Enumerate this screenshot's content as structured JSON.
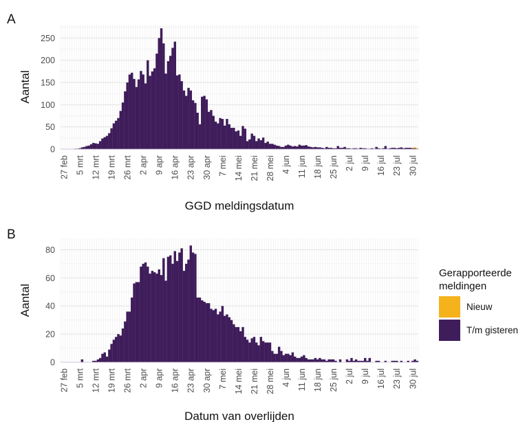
{
  "chart_data": [
    {
      "type": "bar",
      "panel_label": "A",
      "title": "",
      "xlabel": "GGD meldingsdatum",
      "ylabel": "Aantal",
      "ylim": [
        0,
        280
      ],
      "yticks": [
        0,
        50,
        100,
        150,
        200,
        250
      ],
      "xlim": [
        "2020-02-26",
        "2020-08-02"
      ],
      "xticks": [
        "27 feb",
        "5 mrt",
        "12 mrt",
        "19 mrt",
        "26 mrt",
        "2 apr",
        "9 apr",
        "16 apr",
        "23 apr",
        "30 apr",
        "7 mei",
        "14 mei",
        "21 mei",
        "28 mei",
        "4 jun",
        "11 jun",
        "18 jun",
        "25 jun",
        "2 jul",
        "9 jul",
        "16 jul",
        "23 jul",
        "30 jul"
      ],
      "grid": true,
      "stacked": true,
      "dates": [
        "27 feb",
        "28 feb",
        "29 feb",
        "1 mrt",
        "2 mrt",
        "3 mrt",
        "4 mrt",
        "5 mrt",
        "6 mrt",
        "7 mrt",
        "8 mrt",
        "9 mrt",
        "10 mrt",
        "11 mrt",
        "12 mrt",
        "13 mrt",
        "14 mrt",
        "15 mrt",
        "16 mrt",
        "17 mrt",
        "18 mrt",
        "19 mrt",
        "20 mrt",
        "21 mrt",
        "22 mrt",
        "23 mrt",
        "24 mrt",
        "25 mrt",
        "26 mrt",
        "27 mrt",
        "28 mrt",
        "29 mrt",
        "30 mrt",
        "31 mrt",
        "1 apr",
        "2 apr",
        "3 apr",
        "4 apr",
        "5 apr",
        "6 apr",
        "7 apr",
        "8 apr",
        "9 apr",
        "10 apr",
        "11 apr",
        "12 apr",
        "13 apr",
        "14 apr",
        "15 apr",
        "16 apr",
        "17 apr",
        "18 apr",
        "19 apr",
        "20 apr",
        "21 apr",
        "22 apr",
        "23 apr",
        "24 apr",
        "25 apr",
        "26 apr",
        "27 apr",
        "28 apr",
        "29 apr",
        "30 apr",
        "1 mei",
        "2 mei",
        "3 mei",
        "4 mei",
        "5 mei",
        "6 mei",
        "7 mei",
        "8 mei",
        "9 mei",
        "10 mei",
        "11 mei",
        "12 mei",
        "13 mei",
        "14 mei",
        "15 mei",
        "16 mei",
        "17 mei",
        "18 mei",
        "19 mei",
        "20 mei",
        "21 mei",
        "22 mei",
        "23 mei",
        "24 mei",
        "25 mei",
        "26 mei",
        "27 mei",
        "28 mei",
        "29 mei",
        "30 mei",
        "31 mei",
        "1 jun",
        "2 jun",
        "3 jun",
        "4 jun",
        "5 jun",
        "6 jun",
        "7 jun",
        "8 jun",
        "9 jun",
        "10 jun",
        "11 jun",
        "12 jun",
        "13 jun",
        "14 jun",
        "15 jun",
        "16 jun",
        "17 jun",
        "18 jun",
        "19 jun",
        "20 jun",
        "21 jun",
        "22 jun",
        "23 jun",
        "24 jun",
        "25 jun",
        "26 jun",
        "27 jun",
        "28 jun",
        "29 jun",
        "30 jun",
        "1 jul",
        "2 jul",
        "3 jul",
        "4 jul",
        "5 jul",
        "6 jul",
        "7 jul",
        "8 jul",
        "9 jul",
        "10 jul",
        "11 jul",
        "12 jul",
        "13 jul",
        "14 jul",
        "15 jul",
        "16 jul",
        "17 jul",
        "18 jul",
        "19 jul",
        "20 jul",
        "21 jul",
        "22 jul",
        "23 jul",
        "24 jul",
        "25 jul",
        "26 jul",
        "27 jul",
        "28 jul",
        "29 jul",
        "30 jul",
        "31 jul",
        "1 aug"
      ],
      "series": [
        {
          "name": "T/m gisteren",
          "color": "#3f1d5b",
          "values": [
            0,
            0,
            0,
            0,
            0,
            1,
            1,
            2,
            4,
            5,
            7,
            8,
            11,
            14,
            13,
            12,
            18,
            24,
            27,
            30,
            36,
            47,
            58,
            64,
            70,
            86,
            105,
            130,
            150,
            168,
            172,
            158,
            140,
            157,
            176,
            168,
            148,
            200,
            165,
            175,
            182,
            215,
            250,
            272,
            238,
            170,
            198,
            210,
            228,
            242,
            166,
            168,
            153,
            132,
            120,
            138,
            132,
            110,
            104,
            82,
            56,
            118,
            120,
            112,
            84,
            88,
            75,
            62,
            58,
            70,
            68,
            53,
            68,
            56,
            48,
            48,
            40,
            42,
            30,
            52,
            46,
            18,
            22,
            35,
            30,
            18,
            24,
            20,
            26,
            14,
            17,
            12,
            12,
            10,
            8,
            7,
            5,
            5,
            8,
            10,
            8,
            6,
            7,
            6,
            10,
            8,
            8,
            9,
            6,
            5,
            4,
            5,
            4,
            4,
            3,
            2,
            5,
            3,
            3,
            2,
            2,
            7,
            3,
            3,
            5,
            2,
            2,
            1,
            2,
            2,
            1,
            3,
            2,
            2,
            1,
            1,
            2,
            1,
            5,
            2,
            1,
            2,
            7,
            1,
            2,
            3,
            3,
            2,
            3,
            4,
            2,
            3,
            3,
            3,
            2,
            2,
            1
          ]
        },
        {
          "name": "Nieuw",
          "color": "#f5b21b",
          "values": [
            0,
            0,
            0,
            0,
            0,
            0,
            0,
            0,
            0,
            0,
            0,
            0,
            0,
            0,
            0,
            0,
            0,
            0,
            0,
            0,
            0,
            0,
            0,
            0,
            0,
            0,
            0,
            0,
            0,
            0,
            0,
            0,
            0,
            0,
            0,
            0,
            0,
            0,
            0,
            0,
            0,
            0,
            0,
            0,
            0,
            0,
            0,
            0,
            0,
            0,
            0,
            0,
            0,
            0,
            0,
            0,
            0,
            0,
            0,
            0,
            0,
            0,
            0,
            0,
            0,
            0,
            0,
            0,
            0,
            0,
            0,
            0,
            0,
            0,
            0,
            0,
            0,
            0,
            0,
            0,
            0,
            0,
            0,
            0,
            0,
            0,
            0,
            0,
            0,
            0,
            0,
            0,
            0,
            0,
            0,
            0,
            0,
            0,
            0,
            0,
            0,
            0,
            0,
            0,
            0,
            0,
            0,
            0,
            0,
            0,
            0,
            0,
            0,
            0,
            0,
            0,
            0,
            0,
            0,
            0,
            0,
            0,
            0,
            0,
            0,
            0,
            0,
            0,
            0,
            0,
            0,
            0,
            0,
            0,
            0,
            0,
            0,
            0,
            0,
            0,
            0,
            0,
            0,
            0,
            0,
            0,
            0,
            0,
            0,
            0,
            0,
            0,
            0,
            0,
            1,
            2,
            1
          ]
        }
      ]
    },
    {
      "type": "bar",
      "panel_label": "B",
      "title": "",
      "xlabel": "Datum van overlijden",
      "ylabel": "Aantal",
      "ylim": [
        0,
        88
      ],
      "yticks": [
        0,
        20,
        40,
        60,
        80
      ],
      "xlim": [
        "2020-02-26",
        "2020-08-02"
      ],
      "xticks": [
        "27 feb",
        "5 mrt",
        "12 mrt",
        "19 mrt",
        "26 mrt",
        "2 apr",
        "9 apr",
        "16 apr",
        "23 apr",
        "30 apr",
        "7 mei",
        "14 mei",
        "21 mei",
        "28 mei",
        "4 jun",
        "11 jun",
        "18 jun",
        "25 jun",
        "2 jul",
        "9 jul",
        "16 jul",
        "23 jul",
        "30 jul"
      ],
      "grid": true,
      "stacked": true,
      "dates": [
        "27 feb",
        "28 feb",
        "29 feb",
        "1 mrt",
        "2 mrt",
        "3 mrt",
        "4 mrt",
        "5 mrt",
        "6 mrt",
        "7 mrt",
        "8 mrt",
        "9 mrt",
        "10 mrt",
        "11 mrt",
        "12 mrt",
        "13 mrt",
        "14 mrt",
        "15 mrt",
        "16 mrt",
        "17 mrt",
        "18 mrt",
        "19 mrt",
        "20 mrt",
        "21 mrt",
        "22 mrt",
        "23 mrt",
        "24 mrt",
        "25 mrt",
        "26 mrt",
        "27 mrt",
        "28 mrt",
        "29 mrt",
        "30 mrt",
        "31 mrt",
        "1 apr",
        "2 apr",
        "3 apr",
        "4 apr",
        "5 apr",
        "6 apr",
        "7 apr",
        "8 apr",
        "9 apr",
        "10 apr",
        "11 apr",
        "12 apr",
        "13 apr",
        "14 apr",
        "15 apr",
        "16 apr",
        "17 apr",
        "18 apr",
        "19 apr",
        "20 apr",
        "21 apr",
        "22 apr",
        "23 apr",
        "24 apr",
        "25 apr",
        "26 apr",
        "27 apr",
        "28 apr",
        "29 apr",
        "30 apr",
        "1 mei",
        "2 mei",
        "3 mei",
        "4 mei",
        "5 mei",
        "6 mei",
        "7 mei",
        "8 mei",
        "9 mei",
        "10 mei",
        "11 mei",
        "12 mei",
        "13 mei",
        "14 mei",
        "15 mei",
        "16 mei",
        "17 mei",
        "18 mei",
        "19 mei",
        "20 mei",
        "21 mei",
        "22 mei",
        "23 mei",
        "24 mei",
        "25 mei",
        "26 mei",
        "27 mei",
        "28 mei",
        "29 mei",
        "30 mei",
        "31 mei",
        "1 jun",
        "2 jun",
        "3 jun",
        "4 jun",
        "5 jun",
        "6 jun",
        "7 jun",
        "8 jun",
        "9 jun",
        "10 jun",
        "11 jun",
        "12 jun",
        "13 jun",
        "14 jun",
        "15 jun",
        "16 jun",
        "17 jun",
        "18 jun",
        "19 jun",
        "20 jun",
        "21 jun",
        "22 jun",
        "23 jun",
        "24 jun",
        "25 jun",
        "26 jun",
        "27 jun",
        "28 jun",
        "29 jun",
        "30 jun",
        "1 jul",
        "2 jul",
        "3 jul",
        "4 jul",
        "5 jul",
        "6 jul",
        "7 jul",
        "8 jul",
        "9 jul",
        "10 jul",
        "11 jul",
        "12 jul",
        "13 jul",
        "14 jul",
        "15 jul",
        "16 jul",
        "17 jul",
        "18 jul",
        "19 jul",
        "20 jul",
        "21 jul",
        "22 jul",
        "23 jul",
        "24 jul",
        "25 jul",
        "26 jul",
        "27 jul",
        "28 jul",
        "29 jul",
        "30 jul",
        "31 jul",
        "1 aug"
      ],
      "series": [
        {
          "name": "T/m gisteren",
          "color": "#3f1d5b",
          "values": [
            0,
            0,
            0,
            0,
            0,
            0,
            0,
            0,
            2,
            0,
            0,
            0,
            0,
            1,
            1,
            2,
            3,
            6,
            7,
            4,
            9,
            13,
            16,
            18,
            20,
            19,
            24,
            29,
            36,
            36,
            46,
            56,
            57,
            57,
            68,
            70,
            71,
            68,
            63,
            65,
            64,
            63,
            66,
            62,
            74,
            58,
            75,
            76,
            70,
            79,
            72,
            78,
            81,
            65,
            70,
            73,
            83,
            78,
            77,
            46,
            46,
            44,
            43,
            42,
            42,
            38,
            37,
            38,
            34,
            36,
            40,
            33,
            34,
            32,
            30,
            27,
            25,
            25,
            22,
            25,
            18,
            16,
            14,
            17,
            18,
            14,
            12,
            18,
            15,
            14,
            14,
            14,
            8,
            6,
            6,
            11,
            8,
            5,
            6,
            6,
            5,
            7,
            4,
            3,
            3,
            4,
            5,
            3,
            2,
            2,
            2,
            3,
            2,
            3,
            2,
            2,
            1,
            2,
            2,
            2,
            1,
            0,
            2,
            0,
            0,
            2,
            1,
            3,
            1,
            2,
            1,
            1,
            1,
            3,
            1,
            3,
            0,
            0,
            1,
            1,
            0,
            0,
            1,
            0,
            0,
            1,
            1,
            1,
            0,
            1,
            0,
            0,
            1,
            0,
            1,
            2,
            1
          ]
        },
        {
          "name": "Nieuw",
          "color": "#f5b21b",
          "values": [
            0,
            0,
            0,
            0,
            0,
            0,
            0,
            0,
            0,
            0,
            0,
            0,
            0,
            0,
            0,
            0,
            0,
            0,
            0,
            0,
            0,
            0,
            0,
            0,
            0,
            0,
            0,
            0,
            0,
            0,
            0,
            0,
            0,
            0,
            0,
            0,
            0,
            0,
            0,
            0,
            0,
            0,
            0,
            0,
            0,
            0,
            0,
            0,
            0,
            0,
            0,
            0,
            0,
            0,
            0,
            0,
            0,
            0,
            0,
            0,
            0,
            0,
            0,
            0,
            0,
            0,
            0,
            0,
            0,
            0,
            0,
            0,
            0,
            0,
            0,
            0,
            0,
            0,
            0,
            0,
            0,
            0,
            0,
            0,
            0,
            0,
            0,
            0,
            0,
            0,
            0,
            0,
            0,
            0,
            0,
            0,
            0,
            0,
            0,
            0,
            0,
            0,
            0,
            0,
            0,
            0,
            0,
            0,
            0,
            0,
            0,
            0,
            0,
            0,
            0,
            0,
            0,
            0,
            0,
            0,
            0,
            0,
            0,
            0,
            0,
            0,
            0,
            0,
            0,
            0,
            0,
            0,
            0,
            0,
            0,
            0,
            0,
            0,
            0,
            0,
            0,
            0,
            0,
            0,
            0,
            0,
            0,
            0,
            0,
            0,
            0,
            0,
            0,
            0,
            0,
            0,
            0
          ]
        }
      ]
    }
  ],
  "legend": {
    "title": "Gerapporteerde meldingen",
    "items": [
      {
        "label": "Nieuw",
        "color": "#f5b21b"
      },
      {
        "label": "T/m gisteren",
        "color": "#3f1d5b"
      }
    ]
  }
}
